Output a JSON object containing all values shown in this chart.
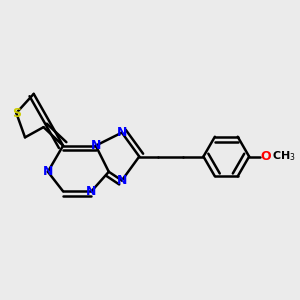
{
  "background_color": "#ebebeb",
  "bond_color": "#000000",
  "nitrogen_color": "#0000ff",
  "sulfur_color": "#cccc00",
  "oxygen_color": "#ff0000",
  "bond_width": 1.8,
  "figsize": [
    3.0,
    3.0
  ],
  "dpi": 100,
  "xlim": [
    0.0,
    1.35
  ],
  "ylim": [
    0.15,
    0.85
  ]
}
